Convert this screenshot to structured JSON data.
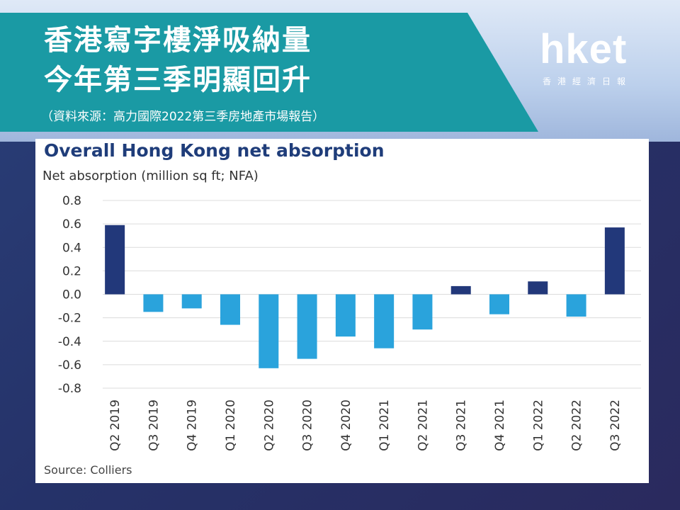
{
  "header": {
    "title_line1": "香港寫字樓淨吸納量",
    "title_line2": "今年第三季明顯回升",
    "subtitle": "（資料來源：高力國際2022第三季房地產市場報告）"
  },
  "logo": {
    "main": "hket",
    "sub": "香港經濟日報"
  },
  "colors": {
    "banner": "#1a9aa4",
    "bar_highlight": "#22387a",
    "bar_regular": "#2aa3dc"
  },
  "chart_data": {
    "type": "bar",
    "title": "Overall Hong Kong net absorption",
    "ylabel": "Net absorption (million sq ft; NFA)",
    "source": "Source: Colliers",
    "categories": [
      "Q2 2019",
      "Q3 2019",
      "Q4 2019",
      "Q1 2020",
      "Q2 2020",
      "Q3 2020",
      "Q4 2020",
      "Q1 2021",
      "Q2 2021",
      "Q3 2021",
      "Q4 2021",
      "Q1 2022",
      "Q2 2022",
      "Q3 2022"
    ],
    "values": [
      0.59,
      -0.15,
      -0.12,
      -0.26,
      -0.63,
      -0.55,
      -0.36,
      -0.46,
      -0.3,
      0.07,
      -0.17,
      0.11,
      -0.19,
      0.57
    ],
    "highlight": [
      true,
      false,
      false,
      false,
      false,
      false,
      false,
      false,
      false,
      true,
      false,
      true,
      false,
      true
    ],
    "ylim": [
      -0.8,
      0.8
    ],
    "yticks": [
      "0.8",
      "0.6",
      "0.4",
      "0.2",
      "0.0",
      "-0.2",
      "-0.4",
      "-0.6",
      "-0.8"
    ],
    "grid": true
  }
}
